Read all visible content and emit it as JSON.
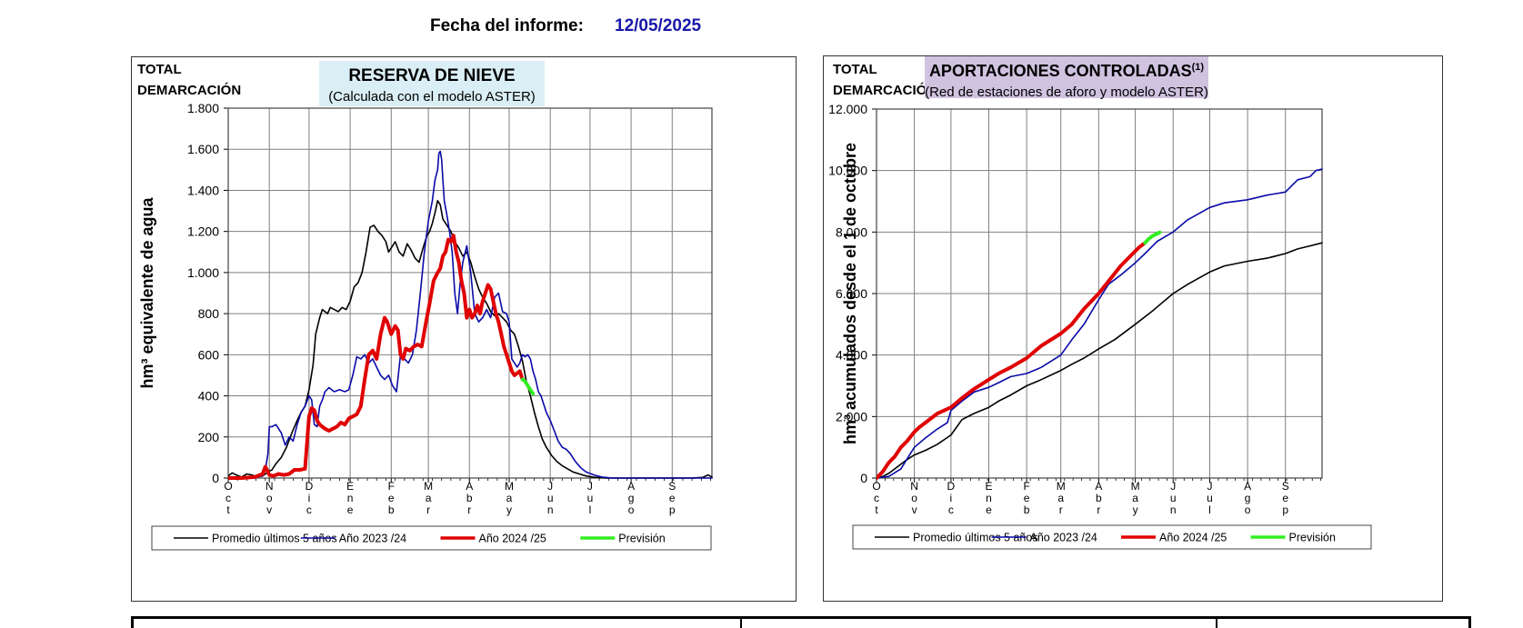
{
  "report": {
    "date_label": "Fecha del informe:",
    "date_value": "12/05/2025"
  },
  "colors": {
    "promedio": "#000000",
    "y2023": "#0a0aa8",
    "y2024": "#e00000",
    "prevision": "#33ee22",
    "grid": "#808080",
    "left_title_bg": "#daeef5",
    "right_title_bg": "#cfc3e0"
  },
  "chart_data": [
    {
      "type": "line",
      "corner_label": [
        "TOTAL",
        "DEMARCACIÓN"
      ],
      "title": "RESERVA DE NIEVE",
      "subtitle": "(Calculada con el modelo ASTER)",
      "ylabel": "hm³ equivalente de agua",
      "ylim": [
        0,
        1800
      ],
      "yticks": [
        0,
        200,
        400,
        600,
        800,
        1000,
        1200,
        1400,
        1600,
        1800
      ],
      "ytick_labels": [
        "0",
        "200",
        "400",
        "600",
        "800",
        "1.000",
        "1.200",
        "1.400",
        "1.600",
        "1.800"
      ],
      "xlim": [
        0,
        365
      ],
      "month_labels": [
        [
          "O",
          "c",
          "t"
        ],
        [
          "N",
          "o",
          "v"
        ],
        [
          "D",
          "i",
          "c"
        ],
        [
          "E",
          "n",
          "e"
        ],
        [
          "F",
          "e",
          "b"
        ],
        [
          "M",
          "a",
          "r"
        ],
        [
          "A",
          "b",
          "r"
        ],
        [
          "M",
          "a",
          "y"
        ],
        [
          "J",
          "u",
          "n"
        ],
        [
          "J",
          "u",
          "l"
        ],
        [
          "A",
          "g",
          "o"
        ],
        [
          "S",
          "e",
          "p"
        ]
      ],
      "month_starts": [
        0,
        31,
        61,
        92,
        123,
        151,
        182,
        212,
        243,
        273,
        304,
        335
      ],
      "grid": true,
      "legend": "bottom",
      "series": [
        {
          "name": "Promedio últimos 5 años",
          "color_key": "promedio",
          "width": 1.6,
          "x": [
            0,
            3,
            6,
            10,
            14,
            18,
            22,
            26,
            30,
            33,
            36,
            40,
            44,
            48,
            52,
            55,
            58,
            61,
            64,
            66,
            69,
            71,
            73,
            75,
            77,
            80,
            83,
            86,
            89,
            92,
            95,
            98,
            101,
            104,
            107,
            110,
            113,
            116,
            119,
            121,
            123,
            126,
            129,
            132,
            135,
            138,
            141,
            144,
            147,
            150,
            152,
            154,
            156,
            158,
            160,
            162,
            165,
            168,
            171,
            174,
            177,
            180,
            183,
            186,
            189,
            192,
            195,
            198,
            201,
            204,
            207,
            210,
            213,
            216,
            219,
            222,
            225,
            228,
            231,
            234,
            237,
            240,
            244,
            248,
            252,
            256,
            260,
            265,
            270,
            275,
            280,
            285,
            290,
            300,
            310,
            320,
            330,
            340,
            350,
            358,
            362,
            365
          ],
          "y": [
            10,
            25,
            15,
            5,
            20,
            15,
            5,
            10,
            30,
            40,
            70,
            100,
            150,
            220,
            280,
            320,
            350,
            430,
            550,
            700,
            780,
            820,
            810,
            800,
            830,
            820,
            810,
            830,
            820,
            860,
            930,
            950,
            1000,
            1100,
            1220,
            1230,
            1200,
            1180,
            1150,
            1100,
            1120,
            1150,
            1100,
            1080,
            1140,
            1110,
            1070,
            1050,
            1120,
            1180,
            1200,
            1240,
            1290,
            1350,
            1330,
            1260,
            1230,
            1200,
            1150,
            1120,
            1080,
            1100,
            1050,
            980,
            920,
            880,
            850,
            810,
            790,
            800,
            780,
            760,
            720,
            700,
            640,
            570,
            470,
            400,
            320,
            250,
            190,
            150,
            110,
            80,
            60,
            45,
            30,
            20,
            10,
            5,
            2,
            0,
            0,
            0,
            0,
            0,
            0,
            0,
            0,
            3,
            15,
            5
          ]
        },
        {
          "name": "Año 2023 /24",
          "color_key": "y2023",
          "width": 1.6,
          "x": [
            0,
            10,
            20,
            26,
            28,
            30,
            31,
            33,
            36,
            40,
            43,
            46,
            49,
            52,
            55,
            58,
            61,
            63,
            65,
            67,
            69,
            71,
            73,
            76,
            80,
            84,
            88,
            91,
            94,
            97,
            100,
            103,
            106,
            109,
            112,
            115,
            118,
            121,
            124,
            127,
            130,
            133,
            136,
            139,
            142,
            145,
            148,
            151,
            154,
            156,
            158,
            159,
            160,
            161,
            162,
            163,
            165,
            167,
            169,
            171,
            173,
            175,
            177,
            180,
            183,
            186,
            189,
            192,
            195,
            198,
            201,
            204,
            207,
            210,
            212,
            214,
            216,
            218,
            220,
            222,
            224,
            226,
            228,
            230,
            232,
            234,
            236,
            238,
            240,
            243,
            246,
            249,
            252,
            255,
            258,
            262,
            266,
            270,
            276,
            282,
            290,
            300,
            310,
            320,
            330,
            340,
            350,
            358,
            362,
            365
          ],
          "y": [
            0,
            0,
            5,
            10,
            40,
            120,
            250,
            250,
            260,
            220,
            160,
            200,
            180,
            260,
            320,
            350,
            400,
            380,
            260,
            250,
            350,
            380,
            420,
            440,
            420,
            430,
            420,
            430,
            500,
            590,
            580,
            600,
            560,
            580,
            540,
            500,
            480,
            500,
            450,
            420,
            600,
            580,
            560,
            600,
            720,
            900,
            1100,
            1250,
            1350,
            1450,
            1500,
            1580,
            1590,
            1550,
            1450,
            1350,
            1280,
            1200,
            1100,
            900,
            800,
            950,
            1050,
            1130,
            1000,
            800,
            760,
            780,
            820,
            780,
            880,
            900,
            810,
            800,
            760,
            580,
            560,
            540,
            560,
            600,
            590,
            600,
            580,
            520,
            480,
            420,
            400,
            360,
            320,
            280,
            230,
            180,
            150,
            140,
            120,
            80,
            50,
            30,
            15,
            5,
            0,
            0,
            0,
            0,
            0,
            0,
            0,
            0,
            0,
            0
          ]
        },
        {
          "name": "Año 2024 /25",
          "color_key": "y2024",
          "width": 4,
          "x": [
            0,
            10,
            20,
            26,
            28,
            30,
            31,
            34,
            38,
            42,
            46,
            50,
            54,
            58,
            61,
            63,
            65,
            67,
            69,
            71,
            73,
            76,
            79,
            82,
            85,
            88,
            91,
            94,
            97,
            100,
            103,
            106,
            109,
            112,
            115,
            118,
            120,
            123,
            126,
            128,
            130,
            132,
            134,
            137,
            140,
            143,
            146,
            149,
            152,
            155,
            158,
            160,
            162,
            164,
            166,
            168,
            170,
            172,
            174,
            176,
            178,
            180,
            182,
            184,
            186,
            188,
            190,
            192,
            194,
            196,
            198,
            200,
            202,
            204,
            206,
            208,
            210,
            212,
            214,
            216,
            218,
            220,
            222
          ],
          "y": [
            0,
            0,
            5,
            20,
            55,
            30,
            15,
            10,
            20,
            15,
            20,
            40,
            40,
            45,
            300,
            340,
            330,
            280,
            260,
            250,
            240,
            230,
            240,
            250,
            270,
            260,
            290,
            300,
            310,
            350,
            480,
            600,
            620,
            580,
            700,
            780,
            760,
            700,
            740,
            720,
            600,
            580,
            630,
            620,
            640,
            650,
            640,
            750,
            850,
            960,
            1000,
            1020,
            1080,
            1100,
            1160,
            1150,
            1180,
            1100,
            1050,
            960,
            900,
            780,
            820,
            780,
            800,
            840,
            800,
            860,
            900,
            940,
            920,
            860,
            800,
            760,
            700,
            640,
            600,
            560,
            520,
            500,
            510,
            520,
            480
          ]
        },
        {
          "name": "Previsión",
          "color_key": "prevision",
          "width": 4,
          "x": [
            222,
            224,
            226,
            228,
            230
          ],
          "y": [
            480,
            470,
            450,
            430,
            410
          ]
        }
      ]
    },
    {
      "type": "line",
      "corner_label": [
        "TOTAL",
        "DEMARCACIÓN"
      ],
      "title": "APORTACIONES CONTROLADAS",
      "title_sup": "(1)",
      "subtitle": "(Red de estaciones de aforo y modelo ASTER)",
      "ylabel": "hm³ acumulados desde el 1 de octubre",
      "ylim": [
        0,
        12000
      ],
      "yticks": [
        0,
        2000,
        4000,
        6000,
        8000,
        10000,
        12000
      ],
      "ytick_labels": [
        "0",
        "2.000",
        "4.000",
        "6.000",
        "8.000",
        "10.000",
        "12.000"
      ],
      "xlim": [
        0,
        365
      ],
      "month_labels": [
        [
          "O",
          "c",
          "t"
        ],
        [
          "N",
          "o",
          "v"
        ],
        [
          "D",
          "i",
          "c"
        ],
        [
          "E",
          "n",
          "e"
        ],
        [
          "F",
          "e",
          "b"
        ],
        [
          "M",
          "a",
          "r"
        ],
        [
          "A",
          "b",
          "r"
        ],
        [
          "M",
          "a",
          "y"
        ],
        [
          "J",
          "u",
          "n"
        ],
        [
          "J",
          "u",
          "l"
        ],
        [
          "A",
          "g",
          "o"
        ],
        [
          "S",
          "e",
          "p"
        ]
      ],
      "month_starts": [
        0,
        31,
        61,
        92,
        123,
        151,
        182,
        212,
        243,
        273,
        304,
        335
      ],
      "grid": true,
      "legend": "bottom",
      "series": [
        {
          "name": "Promedio últimos 5 años",
          "color_key": "promedio",
          "width": 1.6,
          "x": [
            0,
            5,
            10,
            15,
            20,
            25,
            31,
            40,
            50,
            61,
            70,
            80,
            92,
            100,
            110,
            123,
            135,
            151,
            160,
            170,
            182,
            195,
            212,
            225,
            243,
            255,
            273,
            285,
            304,
            320,
            335,
            345,
            355,
            365
          ],
          "y": [
            0,
            50,
            150,
            300,
            450,
            600,
            750,
            900,
            1100,
            1400,
            1900,
            2100,
            2300,
            2500,
            2700,
            3000,
            3200,
            3500,
            3700,
            3900,
            4200,
            4500,
            5000,
            5400,
            6000,
            6300,
            6700,
            6900,
            7050,
            7150,
            7300,
            7450,
            7550,
            7650
          ]
        },
        {
          "name": "Año 2023 /24",
          "color_key": "y2023",
          "width": 1.6,
          "x": [
            0,
            10,
            20,
            31,
            40,
            50,
            58,
            61,
            70,
            80,
            92,
            100,
            110,
            123,
            135,
            151,
            160,
            170,
            182,
            190,
            200,
            212,
            220,
            230,
            243,
            255,
            273,
            285,
            304,
            320,
            335,
            340,
            345,
            355,
            360,
            365
          ],
          "y": [
            0,
            50,
            300,
            1000,
            1300,
            1600,
            1800,
            2200,
            2500,
            2800,
            2950,
            3100,
            3300,
            3400,
            3600,
            4000,
            4500,
            5000,
            5800,
            6300,
            6600,
            7000,
            7300,
            7700,
            8000,
            8400,
            8800,
            8950,
            9050,
            9200,
            9300,
            9500,
            9700,
            9800,
            10000,
            10050
          ]
        },
        {
          "name": "Año 2024 /25",
          "color_key": "y2024",
          "width": 4,
          "x": [
            0,
            5,
            10,
            15,
            20,
            25,
            31,
            35,
            40,
            50,
            61,
            70,
            80,
            92,
            100,
            110,
            123,
            135,
            151,
            160,
            170,
            182,
            190,
            200,
            210,
            215,
            220
          ],
          "y": [
            0,
            200,
            500,
            700,
            1000,
            1200,
            1500,
            1650,
            1800,
            2100,
            2300,
            2600,
            2900,
            3200,
            3400,
            3600,
            3900,
            4300,
            4700,
            5000,
            5500,
            6000,
            6400,
            6900,
            7300,
            7500,
            7650
          ]
        },
        {
          "name": "Previsión",
          "color_key": "prevision",
          "width": 4,
          "x": [
            220,
            223,
            226,
            229,
            232
          ],
          "y": [
            7650,
            7780,
            7870,
            7930,
            7990
          ]
        }
      ]
    }
  ]
}
